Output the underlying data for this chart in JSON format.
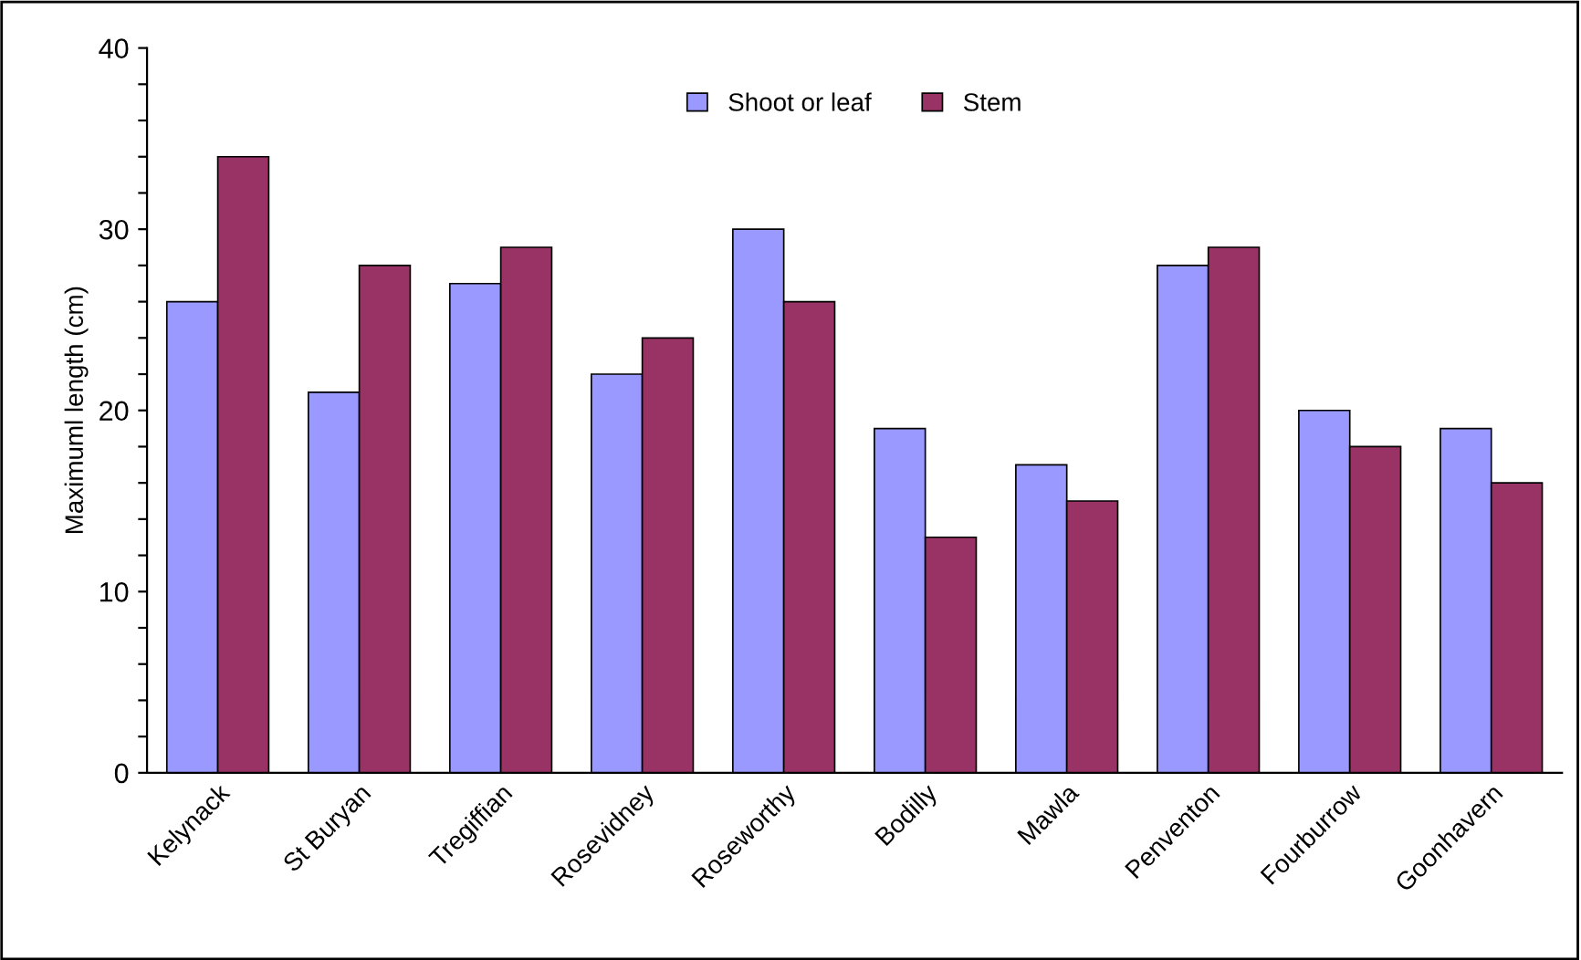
{
  "chart_data": {
    "type": "bar",
    "ylabel": "Maximuml length (cm)",
    "categories": [
      "Kelynack",
      "St Buryan",
      "Tregiffian",
      "Rosevidney",
      "Roseworthy",
      "Bodilly",
      "Mawla",
      "Penventon",
      "Fourburrow",
      "Goonhavern"
    ],
    "series": [
      {
        "name": "Shoot or leaf",
        "color": "#9999ff",
        "values": [
          26,
          21,
          27,
          22,
          30,
          19,
          17,
          28,
          20,
          19
        ]
      },
      {
        "name": "Stem",
        "color": "#993366",
        "values": [
          34,
          28,
          29,
          24,
          26,
          13,
          15,
          29,
          18,
          16
        ]
      }
    ],
    "ylim": [
      0,
      40
    ],
    "yticks": [
      0,
      {
        "value": 2,
        "label": null
      },
      {
        "value": 4,
        "label": null
      },
      {
        "value": 6,
        "label": null
      },
      {
        "value": 8,
        "label": null
      },
      10,
      {
        "value": 12,
        "label": null
      },
      {
        "value": 14,
        "label": null
      },
      {
        "value": 16,
        "label": null
      },
      {
        "value": 18,
        "label": null
      },
      20,
      {
        "value": 22,
        "label": null
      },
      {
        "value": 24,
        "label": null
      },
      {
        "value": 26,
        "label": null
      },
      {
        "value": 28,
        "label": null
      },
      30,
      {
        "value": 32,
        "label": null
      },
      {
        "value": 34,
        "label": null
      },
      {
        "value": 36,
        "label": null
      },
      {
        "value": 38,
        "label": null
      },
      40
    ],
    "grid": false,
    "legend": "top"
  }
}
